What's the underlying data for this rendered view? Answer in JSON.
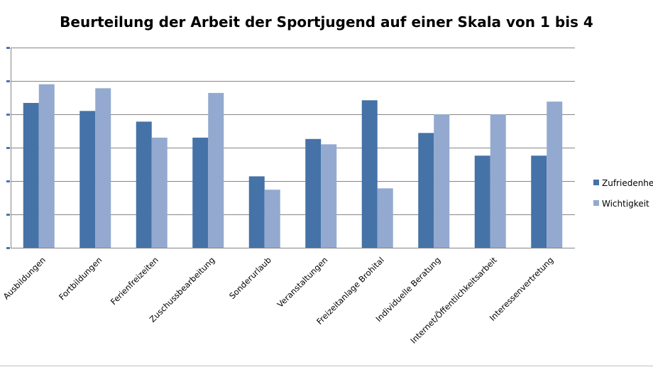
{
  "chart_data": {
    "type": "bar",
    "title": "Beurteilung der Arbeit der Sportjugend auf einer Skala von 1 bis 4",
    "xlabel": "",
    "ylabel": "",
    "categories": [
      "Ausbildungen",
      "Fortbildungen",
      "Ferienfreizeiten",
      "Zuschussbearbeitung",
      "Sonderurlaub",
      "Veranstaltungen",
      "Freizeitanlage Brohital",
      "Individuelle Beratung",
      "Internet/Öffentlichkeitsarbeit",
      "Interessenvertretung"
    ],
    "series": [
      {
        "name": "Zufriedenheit",
        "color": "#4572A7",
        "values": [
          3.17,
          3.05,
          2.89,
          2.65,
          2.07,
          2.63,
          3.21,
          2.72,
          2.38,
          2.38
        ]
      },
      {
        "name": "Wichtigkeit",
        "color": "#93A9CF",
        "values": [
          3.45,
          3.39,
          2.65,
          3.32,
          1.87,
          2.55,
          1.89,
          3.0,
          3.0,
          3.19
        ]
      }
    ],
    "ylim": [
      1,
      4
    ],
    "grid": true,
    "legend": "right"
  }
}
